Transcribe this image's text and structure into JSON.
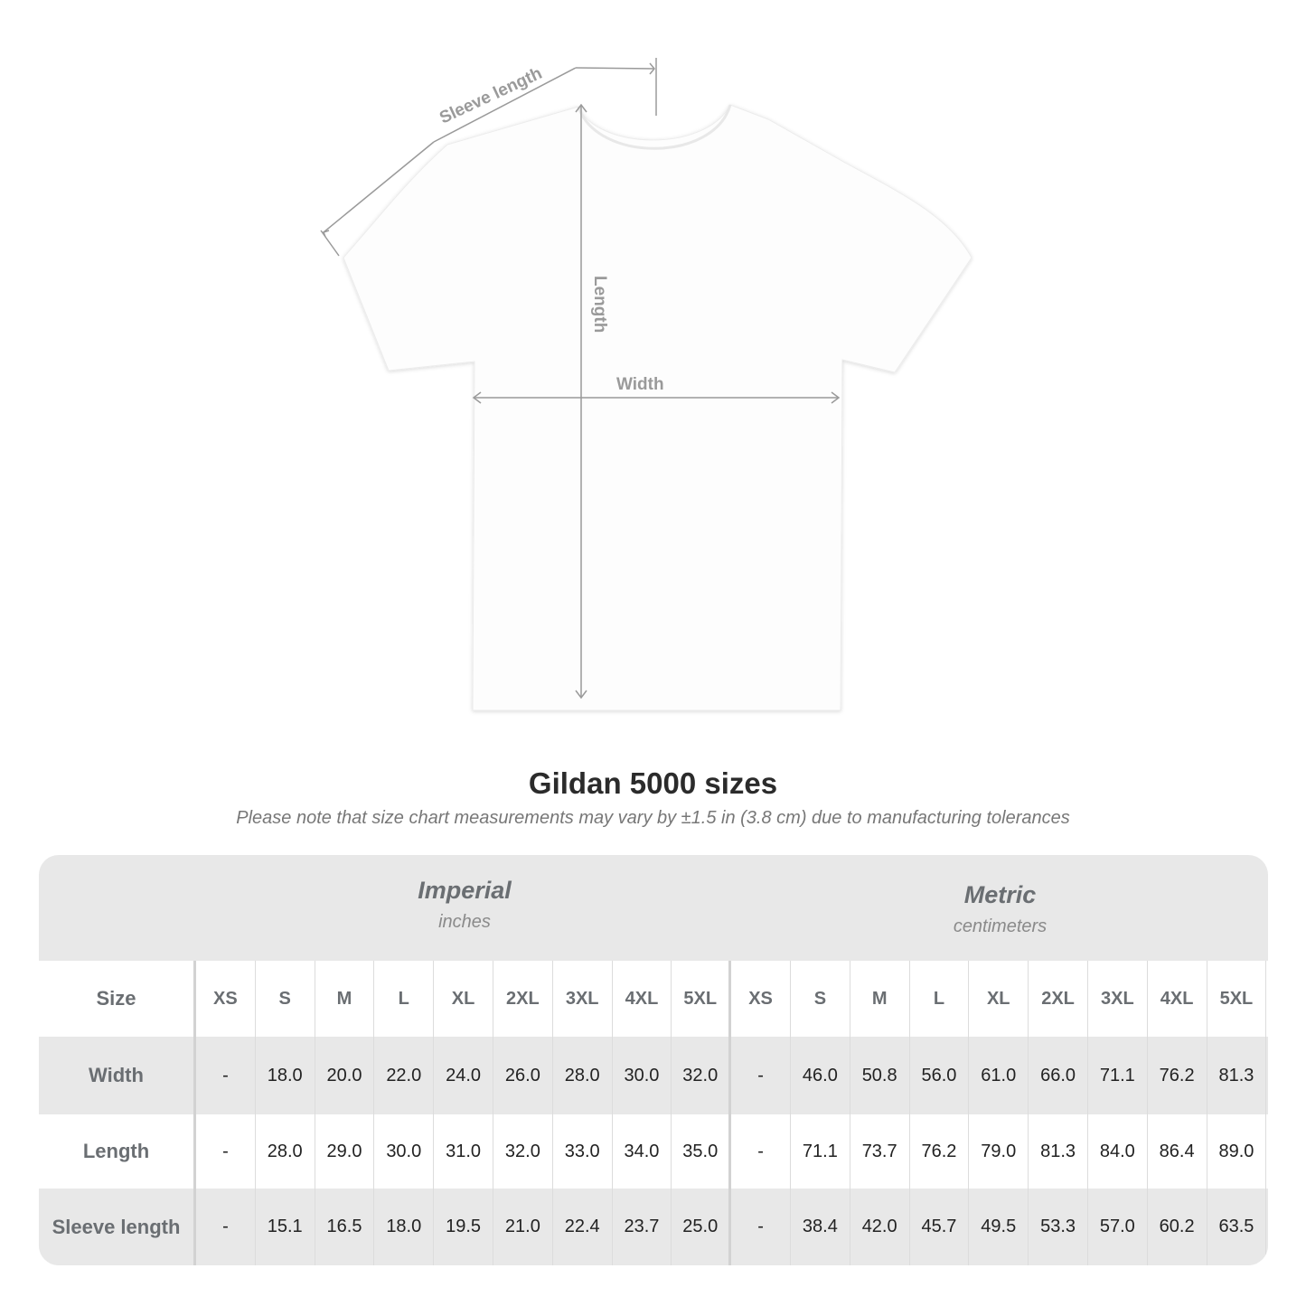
{
  "diagram": {
    "sleeve_label": "Sleeve length",
    "length_label": "Length",
    "width_label": "Width",
    "line_color": "#9a9a9a",
    "shirt_color": "#ffffff"
  },
  "title": "Gildan 5000 sizes",
  "note": "Please note that size chart measurements may vary by ±1.5 in (3.8 cm) due to manufacturing tolerances",
  "imperial": {
    "name": "Imperial",
    "unit": "inches"
  },
  "metric": {
    "name": "Metric",
    "unit": "centimeters"
  },
  "size_label": "Size",
  "sizes": [
    "XS",
    "S",
    "M",
    "L",
    "XL",
    "2XL",
    "3XL",
    "4XL",
    "5XL"
  ],
  "rows": [
    {
      "label": "Width",
      "imperial": [
        "-",
        "18.0",
        "20.0",
        "22.0",
        "24.0",
        "26.0",
        "28.0",
        "30.0",
        "32.0"
      ],
      "metric": [
        "-",
        "46.0",
        "50.8",
        "56.0",
        "61.0",
        "66.0",
        "71.1",
        "76.2",
        "81.3"
      ]
    },
    {
      "label": "Length",
      "imperial": [
        "-",
        "28.0",
        "29.0",
        "30.0",
        "31.0",
        "32.0",
        "33.0",
        "34.0",
        "35.0"
      ],
      "metric": [
        "-",
        "71.1",
        "73.7",
        "76.2",
        "79.0",
        "81.3",
        "84.0",
        "86.4",
        "89.0"
      ]
    },
    {
      "label": "Sleeve length",
      "imperial": [
        "-",
        "15.1",
        "16.5",
        "18.0",
        "19.5",
        "21.0",
        "22.4",
        "23.7",
        "25.0"
      ],
      "metric": [
        "-",
        "38.4",
        "42.0",
        "45.7",
        "49.5",
        "53.3",
        "57.0",
        "60.2",
        "63.5"
      ]
    }
  ]
}
